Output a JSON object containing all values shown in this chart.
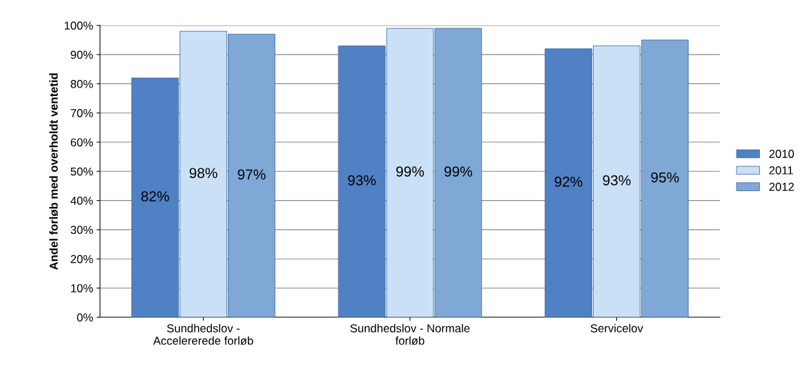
{
  "chart_data": {
    "type": "bar",
    "ylabel": "Andel forløb med overholdt ventetid",
    "categories": [
      "Sundhedslov -\nAccelererede forløb",
      "Sundhedslov - Normale\nforløb",
      "Servicelov"
    ],
    "series": [
      {
        "name": "2010",
        "color": "#4f81c4",
        "values": [
          82,
          93,
          92
        ],
        "value_labels": [
          "82%",
          "93%",
          "92%"
        ]
      },
      {
        "name": "2011",
        "color": "#c9e0f7",
        "values": [
          98,
          99,
          93
        ],
        "value_labels": [
          "98%",
          "99%",
          "93%"
        ]
      },
      {
        "name": "2012",
        "color": "#7fa8d6",
        "values": [
          97,
          99,
          95
        ],
        "value_labels": [
          "97%",
          "99%",
          "95%"
        ]
      }
    ],
    "ylim": [
      0,
      100
    ],
    "yticks": [
      {
        "value": 0,
        "label": "0%"
      },
      {
        "value": 10,
        "label": "10%"
      },
      {
        "value": 20,
        "label": "20%"
      },
      {
        "value": 30,
        "label": "30%"
      },
      {
        "value": 40,
        "label": "40%"
      },
      {
        "value": 50,
        "label": "50%"
      },
      {
        "value": 60,
        "label": "60%"
      },
      {
        "value": 70,
        "label": "70%"
      },
      {
        "value": 80,
        "label": "80%"
      },
      {
        "value": 90,
        "label": "90%"
      },
      {
        "value": 100,
        "label": "100%"
      }
    ],
    "grid": "y",
    "legend": "right"
  }
}
